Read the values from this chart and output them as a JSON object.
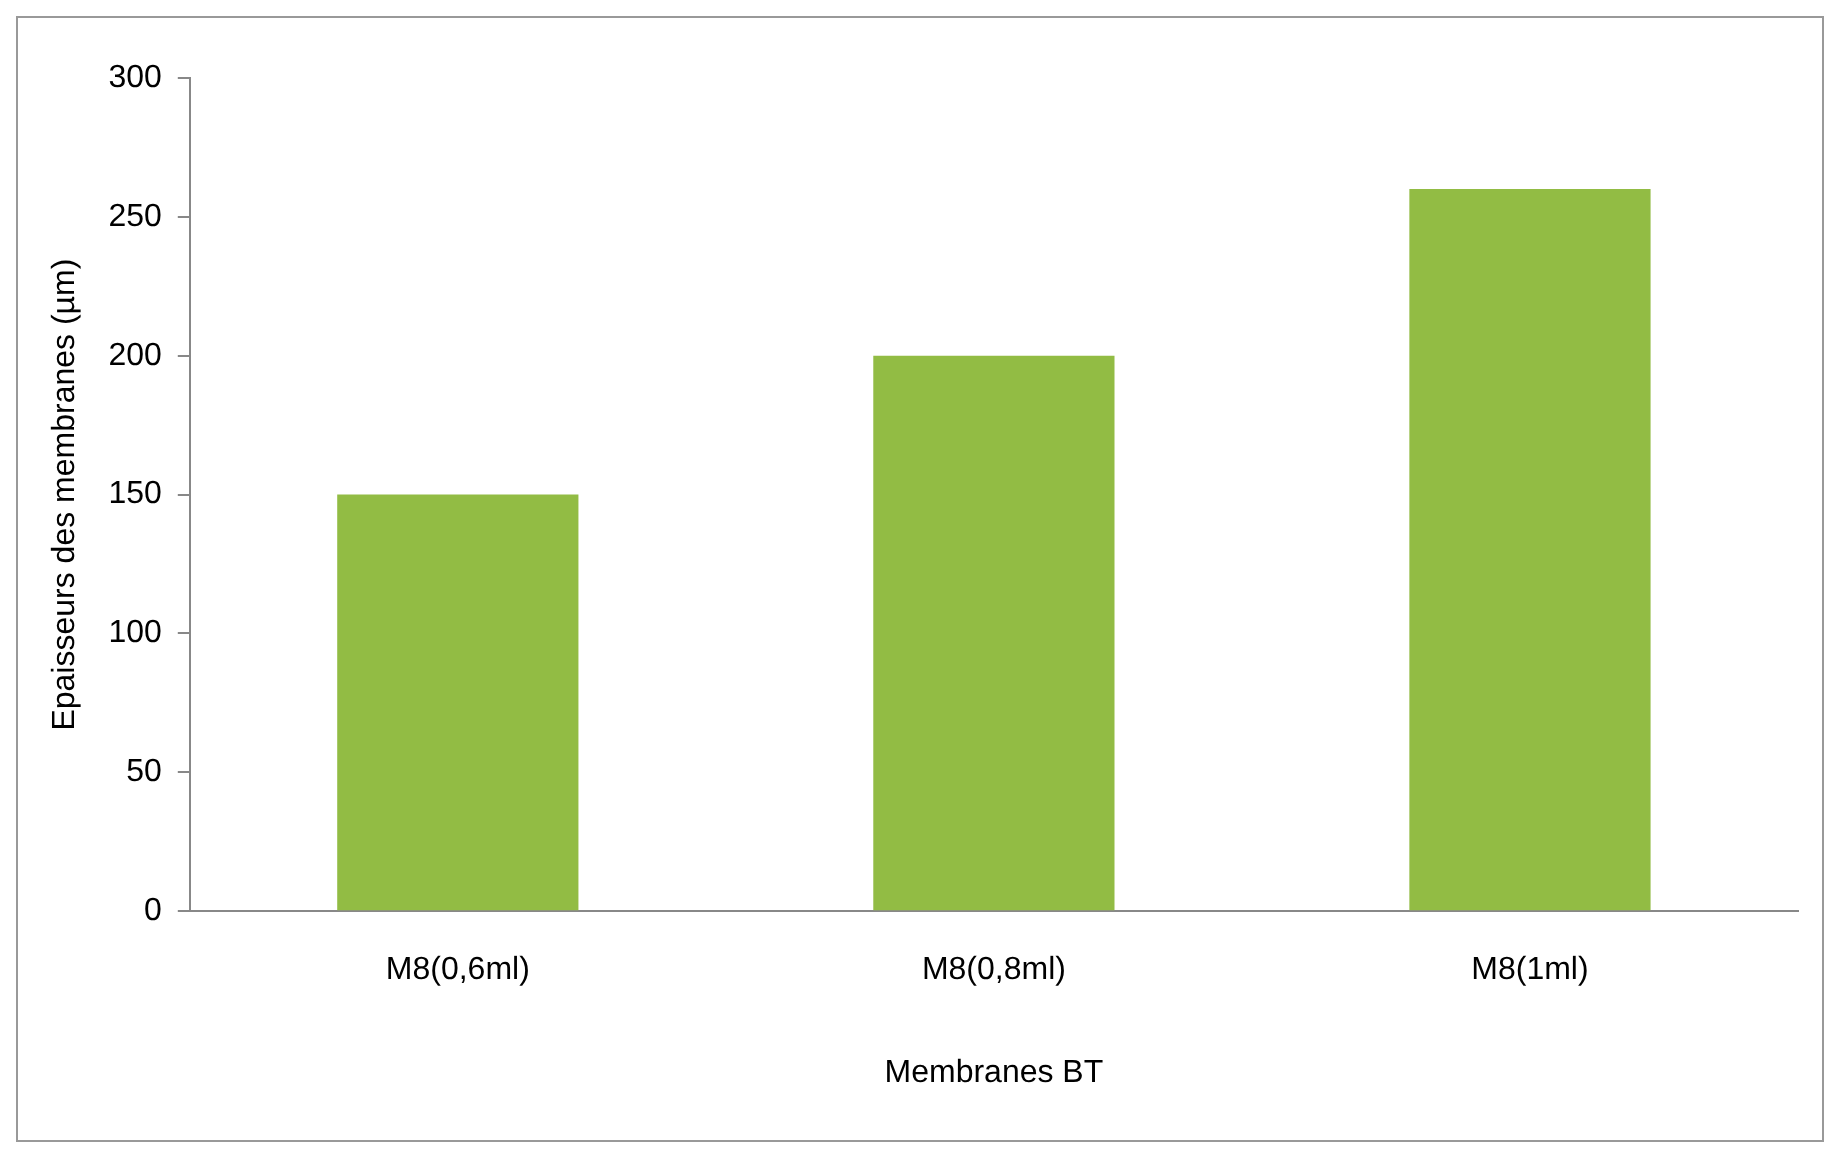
{
  "chart_data": {
    "type": "bar",
    "xlabel": "Membranes BT",
    "ylabel": "Epaisseurs des membranes (µm)",
    "categories": [
      "M8(0,6ml)",
      "M8(0,8ml)",
      "M8(1ml)"
    ],
    "values": [
      150,
      200,
      260
    ],
    "color": "#92bc44",
    "ylim": [
      0,
      300
    ],
    "yticks": [
      0,
      50,
      100,
      150,
      200,
      250,
      300
    ],
    "grid": false,
    "legend": false
  }
}
